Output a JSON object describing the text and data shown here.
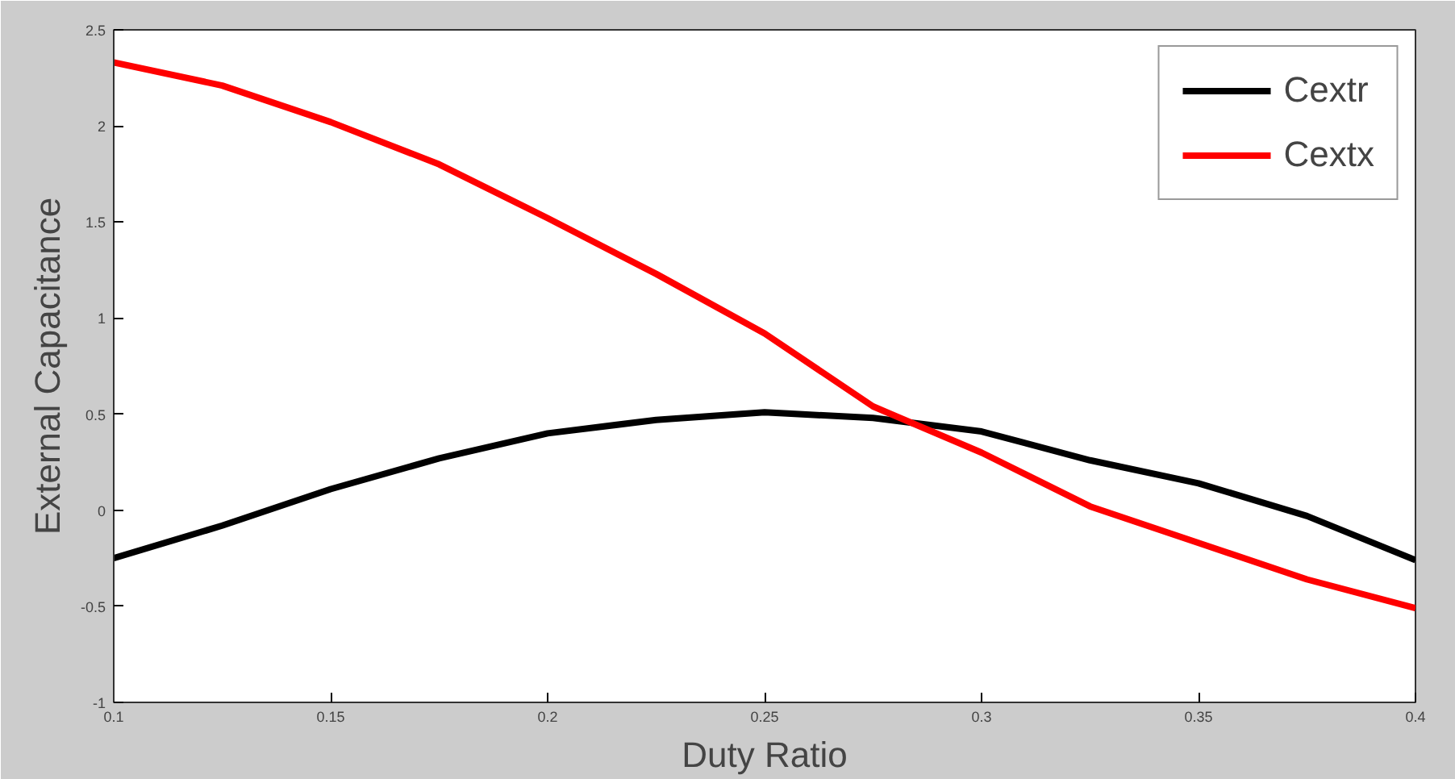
{
  "chart_data": {
    "type": "line",
    "xlabel": "Duty Ratio",
    "ylabel": "External Capacitance",
    "x": [
      0.1,
      0.125,
      0.15,
      0.175,
      0.2,
      0.225,
      0.25,
      0.275,
      0.3,
      0.325,
      0.35,
      0.375,
      0.4
    ],
    "series": [
      {
        "name": "Cextr",
        "color": "#000000",
        "values": [
          -0.25,
          -0.08,
          0.11,
          0.27,
          0.4,
          0.47,
          0.51,
          0.48,
          0.41,
          0.26,
          0.14,
          -0.03,
          -0.26
        ]
      },
      {
        "name": "Cextx",
        "color": "#ff0000",
        "values": [
          2.33,
          2.21,
          2.02,
          1.8,
          1.52,
          1.23,
          0.92,
          0.54,
          0.3,
          0.02,
          -0.17,
          -0.36,
          -0.51
        ]
      }
    ],
    "xlim": [
      0.1,
      0.4
    ],
    "xticks": [
      0.1,
      0.15,
      0.2,
      0.25,
      0.3,
      0.35,
      0.4
    ],
    "ylim": [
      -1,
      2.5
    ],
    "yticks": [
      -1,
      -0.5,
      0,
      0.5,
      1,
      1.5,
      2,
      2.5
    ],
    "grid": false,
    "legend": "top right",
    "marker": "none",
    "line_style": "solid"
  }
}
